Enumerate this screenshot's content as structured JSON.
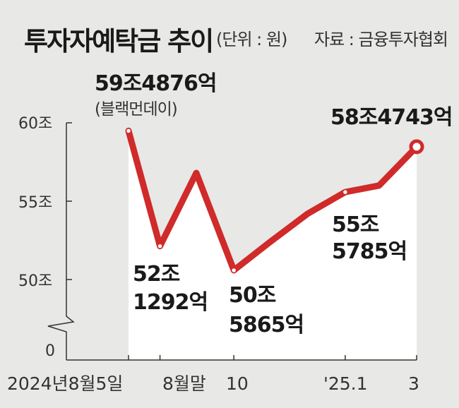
{
  "header": {
    "title": "투자자예탁금 추이",
    "unit": "(단위 : 원)",
    "source": "자료 : 금융투자협회"
  },
  "colors": {
    "line": "#d02a2a",
    "plot_bg": "#ffffff",
    "page_bg": "#e8e8e6",
    "axis": "#333333"
  },
  "chart_data": {
    "type": "line",
    "title": "투자자예탁금 추이",
    "unit": "원",
    "y_ticks": [
      "0",
      "50조",
      "55조",
      "60조"
    ],
    "x_ticks": [
      "2024년8월5일",
      "8월말",
      "10",
      "'25.1",
      "3"
    ],
    "ylim": [
      50,
      60
    ],
    "y_axis_break": true,
    "series": [
      {
        "x": [
          "2024-08-05",
          "2024-08-31",
          "2024-09-30",
          "2024-10-31",
          "2024-11-30",
          "2024-12-31",
          "2025-01-31",
          "2025-02-28",
          "2025-03-31"
        ],
        "values": [
          59.49,
          52.13,
          56.8,
          50.59,
          52.4,
          54.2,
          55.58,
          56.0,
          58.47
        ]
      }
    ],
    "annotations": [
      {
        "x": "2024-08-05",
        "value": 59.4876,
        "label": "59조4876억",
        "sublabel": "(블랙먼데이)"
      },
      {
        "x": "2024-08-31",
        "value": 52.1292,
        "label_line1": "52조",
        "label_line2": "1292억"
      },
      {
        "x": "2024-10-31",
        "value": 50.5865,
        "label_line1": "50조",
        "label_line2": "5865억"
      },
      {
        "x": "2025-01-31",
        "value": 55.5785,
        "label_line1": "55조",
        "label_line2": "5785억"
      },
      {
        "x": "2025-03-31",
        "value": 58.4743,
        "label": "58조4743억"
      }
    ]
  }
}
